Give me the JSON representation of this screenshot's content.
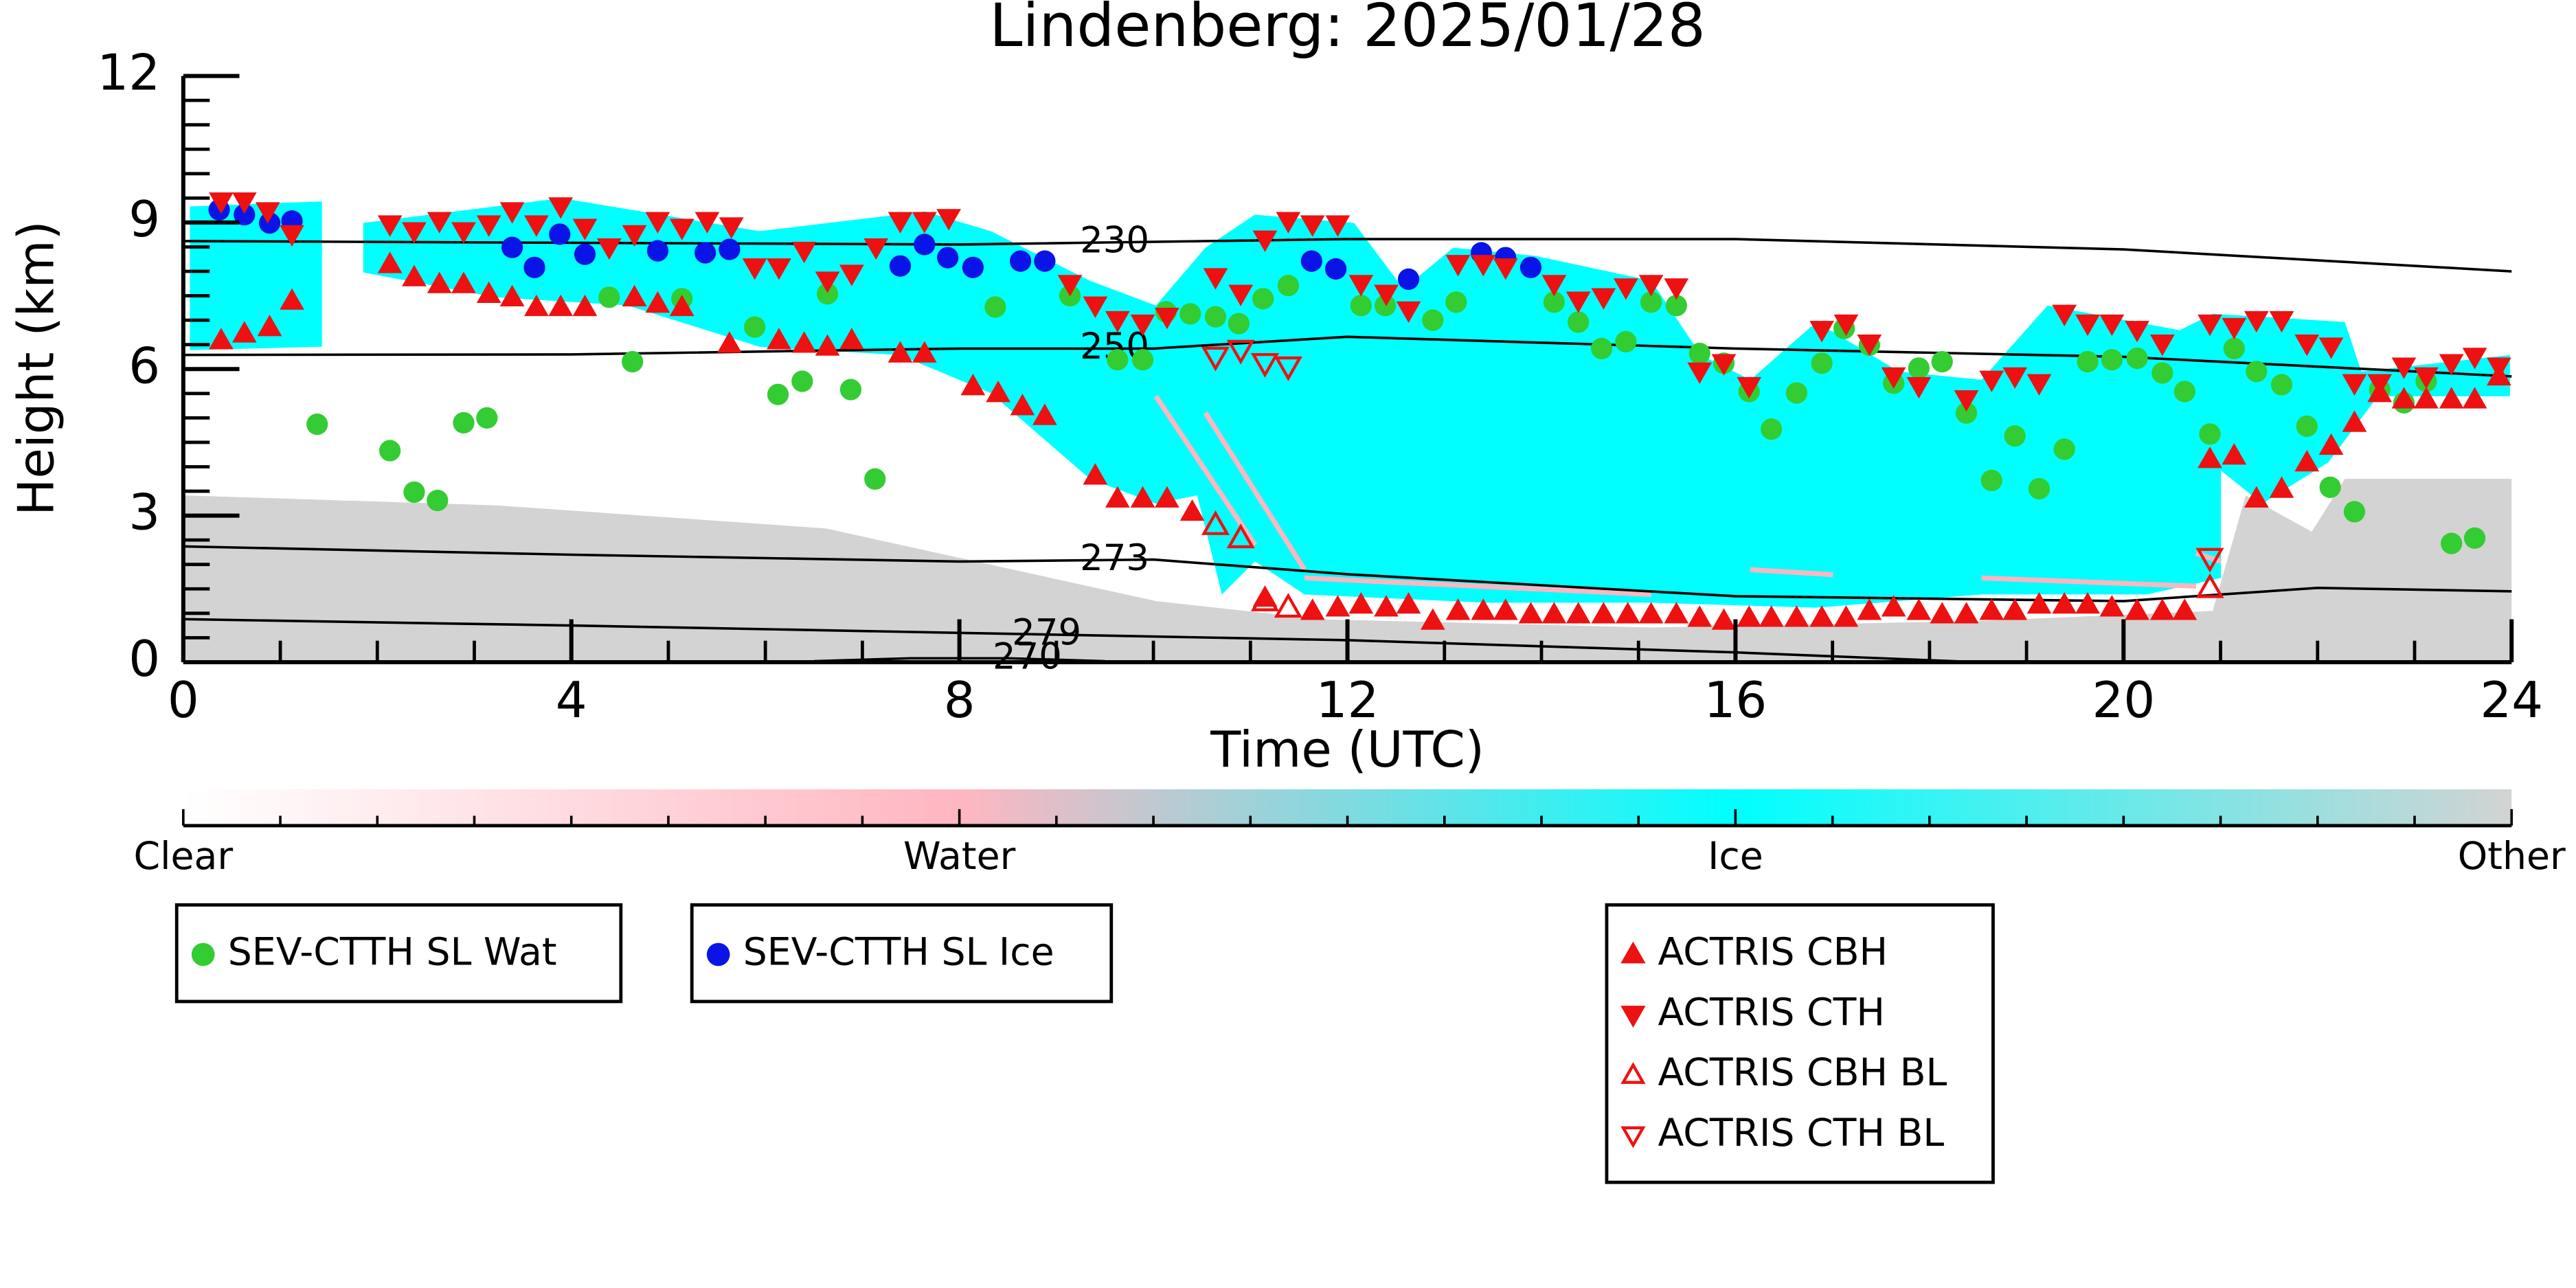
{
  "chart_data": {
    "type": "scatter",
    "title": "Lindenberg: 2025/01/28",
    "xlabel": "Time (UTC)",
    "ylabel": "Height (km)",
    "xlim": [
      0,
      24
    ],
    "ylim": [
      0,
      12
    ],
    "xticks": [
      0,
      4,
      8,
      12,
      16,
      20,
      24
    ],
    "yticks": [
      0,
      3,
      6,
      9,
      12
    ],
    "xticks_minor": [
      1,
      2,
      3,
      5,
      6,
      7,
      9,
      10,
      11,
      13,
      14,
      15,
      17,
      18,
      19,
      21,
      22,
      23
    ],
    "yticks_minor": [
      0.5,
      1,
      1.5,
      2,
      2.5,
      3.5,
      4,
      4.5,
      5,
      5.5,
      6.5,
      7,
      7.5,
      8,
      8.5,
      9.5,
      10,
      10.5,
      11,
      11.5
    ],
    "colorbar": {
      "labels": [
        "Clear",
        "Water",
        "Ice",
        "Other"
      ],
      "colors": [
        "#ffffff",
        "#ffb6c1",
        "#00ffff",
        "#d3d3d3"
      ]
    },
    "contours": [
      {
        "level": 230,
        "x": [
          0,
          8,
          12,
          16,
          20,
          24
        ],
        "y": [
          8.62,
          8.55,
          8.66,
          8.66,
          8.45,
          8.0
        ]
      },
      {
        "level": 250,
        "x": [
          0,
          4,
          8,
          10,
          12,
          16,
          20,
          24
        ],
        "y": [
          6.29,
          6.3,
          6.42,
          6.42,
          6.66,
          6.42,
          6.25,
          5.85
        ]
      },
      {
        "level": 273,
        "x": [
          0,
          4,
          8,
          10,
          12,
          16,
          20,
          22,
          24
        ],
        "y": [
          2.37,
          2.2,
          2.06,
          2.1,
          1.8,
          1.35,
          1.25,
          1.52,
          1.45
        ]
      },
      {
        "level": 279,
        "x": [
          0,
          4,
          8,
          12,
          16,
          18.5
        ],
        "y": [
          0.88,
          0.75,
          0.6,
          0.45,
          0.2,
          0
        ]
      },
      {
        "level": 270,
        "x": [
          6.5,
          7.5,
          8.5,
          9.5
        ],
        "y": [
          0.02,
          0.08,
          0.08,
          0.02
        ]
      }
    ],
    "series": [
      {
        "name": "SEV-CTTH SL Wat",
        "color": "#33cc33",
        "marker": "circle",
        "x": [
          1.38,
          2.13,
          2.38,
          2.62,
          2.89,
          3.13,
          4.39,
          4.63,
          5.14,
          5.89,
          6.13,
          6.38,
          6.64,
          6.88,
          7.13,
          8.37,
          9.14,
          9.63,
          9.89,
          10.13,
          10.38,
          10.64,
          10.88,
          11.13,
          11.39,
          12.14,
          12.39,
          12.88,
          13.12,
          14.13,
          14.38,
          14.62,
          14.87,
          15.13,
          15.39,
          15.63,
          15.88,
          16.14,
          16.37,
          16.63,
          16.89,
          17.12,
          17.38,
          17.63,
          17.89,
          18.13,
          18.38,
          18.64,
          18.88,
          19.13,
          19.39,
          19.63,
          19.88,
          20.14,
          20.4,
          20.63,
          20.89,
          21.14,
          21.37,
          21.63,
          21.89,
          22.13,
          22.38,
          22.64,
          22.89,
          23.12,
          23.38,
          23.62
        ],
        "values": [
          4.87,
          4.33,
          3.48,
          3.31,
          4.9,
          5.0,
          7.47,
          6.15,
          7.44,
          6.86,
          5.48,
          5.75,
          7.54,
          5.58,
          3.75,
          7.27,
          7.5,
          6.19,
          6.19,
          7.17,
          7.13,
          7.07,
          6.93,
          7.44,
          7.71,
          7.3,
          7.3,
          7.0,
          7.37,
          7.37,
          6.96,
          6.42,
          6.56,
          7.37,
          7.3,
          6.32,
          6.12,
          5.54,
          4.77,
          5.51,
          6.12,
          6.83,
          6.49,
          5.71,
          6.02,
          6.15,
          5.1,
          3.72,
          4.63,
          3.55,
          4.36,
          6.15,
          6.19,
          6.22,
          5.92,
          5.54,
          4.67,
          6.42,
          5.95,
          5.68,
          4.83,
          3.58,
          3.08,
          5.58,
          5.31,
          5.75,
          2.43,
          2.54
        ]
      },
      {
        "name": "SEV-CTTH SL Ice",
        "color": "#0a14e6",
        "marker": "circle",
        "x": [
          0.37,
          0.63,
          0.89,
          1.12,
          3.39,
          3.62,
          3.88,
          4.14,
          4.89,
          5.38,
          5.63,
          7.39,
          7.64,
          7.88,
          8.14,
          8.63,
          8.88,
          11.63,
          11.88,
          12.63,
          13.38,
          13.63,
          13.89
        ],
        "values": [
          9.26,
          9.16,
          8.99,
          9.03,
          8.49,
          8.08,
          8.76,
          8.35,
          8.42,
          8.38,
          8.45,
          8.11,
          8.55,
          8.28,
          8.08,
          8.21,
          8.21,
          8.21,
          8.05,
          7.84,
          8.38,
          8.28,
          8.08
        ]
      },
      {
        "name": "ACTRIS CBH",
        "color": "#ee1111",
        "marker": "triangle-up",
        "x": [
          0.39,
          0.63,
          0.89,
          1.12,
          2.13,
          2.38,
          2.64,
          2.89,
          3.15,
          3.39,
          3.64,
          3.89,
          4.14,
          4.65,
          4.89,
          5.14,
          5.63,
          6.14,
          6.4,
          6.64,
          6.89,
          7.39,
          7.64,
          8.14,
          8.4,
          8.65,
          8.88,
          9.4,
          9.63,
          9.89,
          10.14,
          10.4,
          11.15,
          11.64,
          11.9,
          12.14,
          12.4,
          12.63,
          12.88,
          13.14,
          13.4,
          13.63,
          13.89,
          14.13,
          14.38,
          14.64,
          14.89,
          15.13,
          15.39,
          15.63,
          15.88,
          16.14,
          16.37,
          16.63,
          16.89,
          17.14,
          17.38,
          17.63,
          17.89,
          18.13,
          18.38,
          18.64,
          18.88,
          19.13,
          19.39,
          19.63,
          19.88,
          20.14,
          20.4,
          20.63,
          20.89,
          21.14,
          21.37,
          21.63,
          21.89,
          22.14,
          22.38,
          22.64,
          22.89,
          23.12,
          23.38,
          23.62,
          23.87
        ],
        "values": [
          6.59,
          6.73,
          6.86,
          7.4,
          8.15,
          7.88,
          7.74,
          7.74,
          7.54,
          7.47,
          7.27,
          7.27,
          7.27,
          7.47,
          7.34,
          7.27,
          6.52,
          6.59,
          6.52,
          6.46,
          6.59,
          6.32,
          6.32,
          5.65,
          5.51,
          5.24,
          5.04,
          3.82,
          3.35,
          3.35,
          3.35,
          3.08,
          1.32,
          1.05,
          1.12,
          1.18,
          1.12,
          1.18,
          0.85,
          1.05,
          1.05,
          1.05,
          0.98,
          0.98,
          0.98,
          0.98,
          0.98,
          0.98,
          0.98,
          0.91,
          0.85,
          0.91,
          0.91,
          0.91,
          0.91,
          0.91,
          1.05,
          1.12,
          1.05,
          0.98,
          0.98,
          1.05,
          1.05,
          1.18,
          1.18,
          1.18,
          1.12,
          1.05,
          1.05,
          1.05,
          4.16,
          4.23,
          3.35,
          3.55,
          4.09,
          4.43,
          4.9,
          5.51,
          5.38,
          5.38,
          5.38,
          5.38,
          5.85
        ]
      },
      {
        "name": "ACTRIS CTH",
        "color": "#ee1111",
        "marker": "triangle-down",
        "x": [
          0.39,
          0.63,
          0.87,
          1.12,
          2.13,
          2.38,
          2.64,
          2.89,
          3.15,
          3.39,
          3.64,
          3.89,
          4.14,
          4.39,
          4.65,
          4.89,
          5.14,
          5.4,
          5.65,
          5.89,
          6.14,
          6.4,
          6.64,
          6.89,
          7.14,
          7.39,
          7.64,
          7.89,
          9.14,
          9.4,
          9.63,
          9.89,
          10.14,
          10.64,
          10.9,
          11.15,
          11.39,
          11.64,
          11.9,
          12.14,
          12.4,
          12.63,
          13.14,
          13.4,
          13.63,
          14.13,
          14.38,
          14.64,
          14.87,
          15.13,
          15.39,
          15.63,
          15.88,
          16.14,
          16.89,
          17.14,
          17.38,
          17.63,
          17.89,
          18.38,
          18.64,
          18.88,
          19.13,
          19.39,
          19.63,
          19.88,
          20.14,
          20.4,
          20.89,
          21.14,
          21.37,
          21.63,
          21.89,
          22.14,
          22.38,
          22.64,
          22.89,
          23.12,
          23.38,
          23.62,
          23.87
        ],
        "values": [
          9.43,
          9.43,
          9.23,
          8.76,
          8.96,
          8.82,
          9.03,
          8.82,
          8.96,
          9.23,
          8.96,
          9.33,
          8.89,
          8.49,
          8.76,
          9.03,
          8.89,
          9.03,
          8.92,
          8.08,
          8.08,
          8.42,
          7.81,
          7.95,
          8.49,
          9.03,
          9.03,
          9.09,
          7.74,
          7.3,
          7.0,
          6.93,
          7.07,
          7.88,
          7.54,
          8.65,
          9.03,
          8.96,
          8.96,
          7.74,
          7.54,
          7.2,
          8.15,
          8.15,
          8.08,
          7.74,
          7.4,
          7.47,
          7.67,
          7.74,
          7.67,
          5.95,
          6.12,
          5.65,
          6.8,
          6.93,
          6.52,
          5.85,
          5.65,
          5.38,
          5.78,
          5.85,
          5.71,
          7.13,
          6.93,
          6.93,
          6.8,
          6.52,
          6.93,
          6.86,
          7.0,
          7.0,
          6.52,
          6.46,
          5.71,
          5.71,
          6.05,
          5.85,
          6.12,
          6.25,
          6.05
        ]
      },
      {
        "name": "ACTRIS CBH BL",
        "color": "#ee1111",
        "marker": "triangle-up-open",
        "x": [
          10.64,
          10.9,
          11.15,
          11.39,
          20.89
        ],
        "values": [
          2.81,
          2.54,
          1.25,
          1.12,
          1.52
        ]
      },
      {
        "name": "ACTRIS CTH BL",
        "color": "#ee1111",
        "marker": "triangle-down-open",
        "x": [
          10.64,
          10.9,
          11.15,
          11.39,
          20.89
        ],
        "values": [
          6.25,
          6.39,
          6.12,
          6.05,
          2.13
        ]
      }
    ]
  }
}
